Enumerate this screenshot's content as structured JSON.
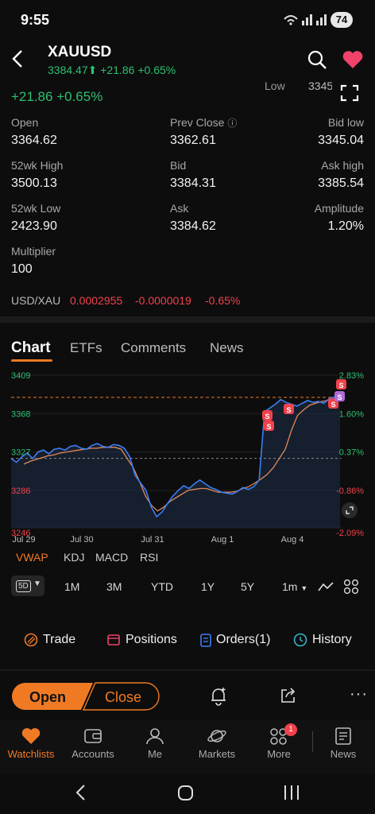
{
  "status": {
    "time": "9:55",
    "battery": "74"
  },
  "header": {
    "symbol": "XAUUSD",
    "price": "3384.47",
    "change": "+21.86",
    "change_pct": "+0.65%"
  },
  "peek": {
    "change": "+21.86 +0.65%",
    "low_label": "Low",
    "low_value": "3345.0"
  },
  "stats": {
    "open_label": "Open",
    "open": "3364.62",
    "prev_close_label": "Prev Close",
    "prev_close": "3362.61",
    "bid_low_label": "Bid low",
    "bid_low": "3345.04",
    "wk_high_label": "52wk High",
    "wk_high": "3500.13",
    "bid_label": "Bid",
    "bid": "3384.31",
    "ask_high_label": "Ask high",
    "ask_high": "3385.54",
    "wk_low_label": "52wk Low",
    "wk_low": "2423.90",
    "ask_label": "Ask",
    "ask": "3384.62",
    "amplitude_label": "Amplitude",
    "amplitude": "1.20%",
    "multiplier_label": "Multiplier",
    "multiplier": "100",
    "usdxau_label": "USD/XAU",
    "usdxau_value": "0.0002955",
    "usdxau_change": "-0.0000019",
    "usdxau_pct": "-0.65%"
  },
  "tabs": [
    "Chart",
    "ETFs",
    "Comments",
    "News"
  ],
  "chart_data": {
    "type": "line",
    "y_ticks": [
      "3409",
      "3368",
      "3327",
      "3286",
      "3246"
    ],
    "y_pct_ticks": [
      "2.83%",
      "1.60%",
      "0.37%",
      "-0.86%",
      "-2.09%"
    ],
    "x_ticks": [
      "Jul 29",
      "Jul 30",
      "Jul 31",
      "Aug 1",
      "Aug 4"
    ],
    "ylim": [
      3246,
      3409
    ],
    "prev_close": 3362.61,
    "reference_dashed": 3327,
    "current": 3384.47,
    "series": [
      {
        "values": [
          3320,
          3316,
          3322,
          3326,
          3320,
          3327,
          3329,
          3325,
          3330,
          3331,
          3329,
          3333,
          3334,
          3331,
          3330,
          3334,
          3336,
          3333,
          3332,
          3335,
          3334,
          3331,
          3322,
          3302,
          3294,
          3286,
          3268,
          3258,
          3263,
          3272,
          3280,
          3286,
          3291,
          3288,
          3293,
          3297,
          3293,
          3289,
          3287,
          3284,
          3283,
          3282,
          3285,
          3289,
          3287,
          3290,
          3297,
          3370,
          3374,
          3378,
          3383,
          3380,
          3378,
          3376,
          3379,
          3382,
          3380,
          3381,
          3379,
          3384,
          3386,
          3390
        ]
      },
      {
        "values": [
          3314,
          3317,
          3319,
          3321,
          3323,
          3324,
          3326,
          3327,
          3328,
          3329,
          3330,
          3331,
          3331,
          3332,
          3332,
          3332,
          3330,
          3320,
          3310,
          3296,
          3280,
          3270,
          3264,
          3268,
          3274,
          3278,
          3282,
          3286,
          3287,
          3288,
          3288,
          3286,
          3284,
          3284,
          3284,
          3285,
          3288,
          3290,
          3294,
          3298,
          3303,
          3310,
          3320,
          3330,
          3350,
          3366,
          3372,
          3377,
          3379,
          3381,
          3382,
          3383,
          3384
        ]
      }
    ]
  },
  "indicators": [
    "VWAP",
    "KDJ",
    "MACD",
    "RSI"
  ],
  "periods": {
    "selected": "5D",
    "items": [
      "1M",
      "3M",
      "YTD",
      "1Y",
      "5Y"
    ],
    "interval": "1m"
  },
  "actions": [
    "Trade",
    "Positions",
    "Orders(1)",
    "History"
  ],
  "trade": {
    "open": "Open",
    "close": "Close"
  },
  "nav": [
    "Watchlists",
    "Accounts",
    "Me",
    "Markets",
    "More",
    "News"
  ],
  "badges": {
    "more": "1"
  },
  "colors": {
    "accent": "#f07a24",
    "green": "#2fbf71",
    "red": "#f0424c",
    "line": "#3d7df5"
  }
}
